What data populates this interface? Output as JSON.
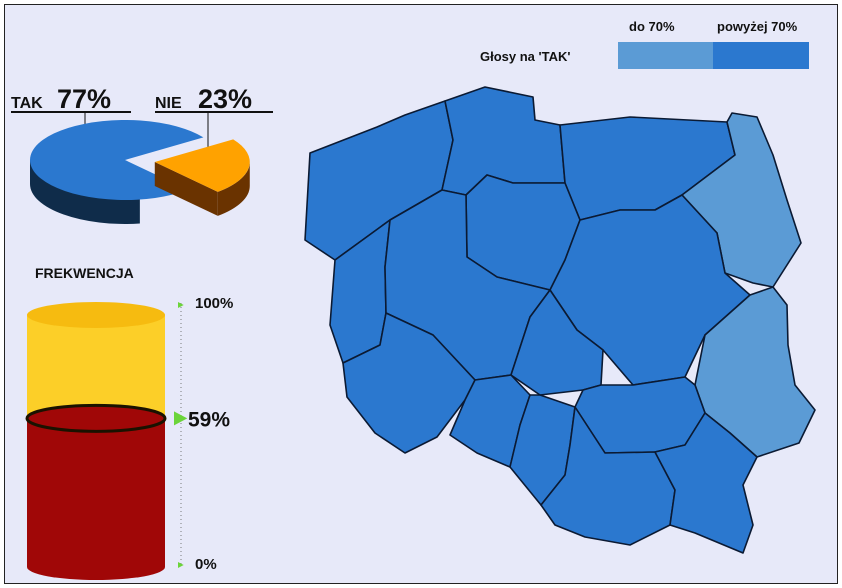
{
  "colors": {
    "background": "#e7e9f9",
    "yes": "#2b78cf",
    "yes_dark": "#0f2c4a",
    "no": "#ffa200",
    "no_dark": "#6a3300",
    "region_high": "#2b78cf",
    "region_low": "#5b9bd5",
    "turnout_filled": "#a00707",
    "turnout_empty": "#fccf28",
    "tick_green": "#6bd43a"
  },
  "chart_data": [
    {
      "type": "pie",
      "slices": [
        {
          "name": "TAK",
          "value": 77,
          "label": "77%"
        },
        {
          "name": "NIE",
          "value": 23,
          "label": "23%"
        }
      ]
    },
    {
      "type": "bar",
      "title": "FREKWENCJA",
      "value": 59,
      "value_label": "59%",
      "ylim": [
        0,
        100
      ],
      "tick_labels": [
        "100%",
        "0%"
      ]
    },
    {
      "type": "map",
      "legend": {
        "title": "Głosy na 'TAK'",
        "entries": [
          {
            "label": "do 70%",
            "color": "#5b9bd5"
          },
          {
            "label": "powyżej 70%",
            "color": "#2b78cf"
          }
        ]
      },
      "regions": [
        {
          "id": "zachodniopomorskie",
          "class": "powyżej 70%"
        },
        {
          "id": "pomorskie",
          "class": "powyżej 70%"
        },
        {
          "id": "warminsko-mazurskie",
          "class": "powyżej 70%"
        },
        {
          "id": "podlaskie",
          "class": "do 70%"
        },
        {
          "id": "lubuskie",
          "class": "powyżej 70%"
        },
        {
          "id": "wielkopolskie",
          "class": "powyżej 70%"
        },
        {
          "id": "kujawsko-pomorskie",
          "class": "powyżej 70%"
        },
        {
          "id": "mazowieckie",
          "class": "powyżej 70%"
        },
        {
          "id": "lodzkie",
          "class": "powyżej 70%"
        },
        {
          "id": "lubelskie",
          "class": "do 70%"
        },
        {
          "id": "dolnoslaskie",
          "class": "powyżej 70%"
        },
        {
          "id": "opolskie",
          "class": "powyżej 70%"
        },
        {
          "id": "slaskie",
          "class": "powyżej 70%"
        },
        {
          "id": "swietokrzyskie",
          "class": "powyżej 70%"
        },
        {
          "id": "malopolskie",
          "class": "powyżej 70%"
        },
        {
          "id": "podkarpackie",
          "class": "powyżej 70%"
        }
      ]
    }
  ]
}
